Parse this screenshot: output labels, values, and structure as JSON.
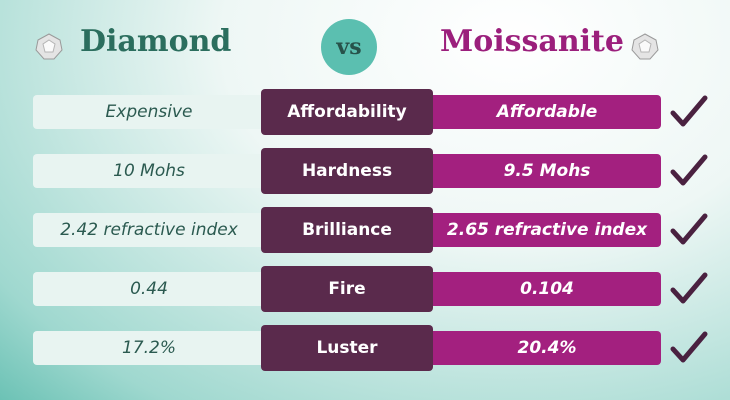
{
  "header": {
    "left": "Diamond",
    "vs": "vs",
    "right": "Moissanite"
  },
  "rows": [
    {
      "diamond": "Expensive",
      "property": "Affordability",
      "moissanite": "Affordable"
    },
    {
      "diamond": "10 Mohs",
      "property": "Hardness",
      "moissanite": "9.5 Mohs"
    },
    {
      "diamond": "2.42 refractive index",
      "property": "Brilliance",
      "moissanite": "2.65 refractive index"
    },
    {
      "diamond": "0.44",
      "property": "Fire",
      "moissanite": "0.104"
    },
    {
      "diamond": "17.2%",
      "property": "Luster",
      "moissanite": "20.4%"
    }
  ]
}
